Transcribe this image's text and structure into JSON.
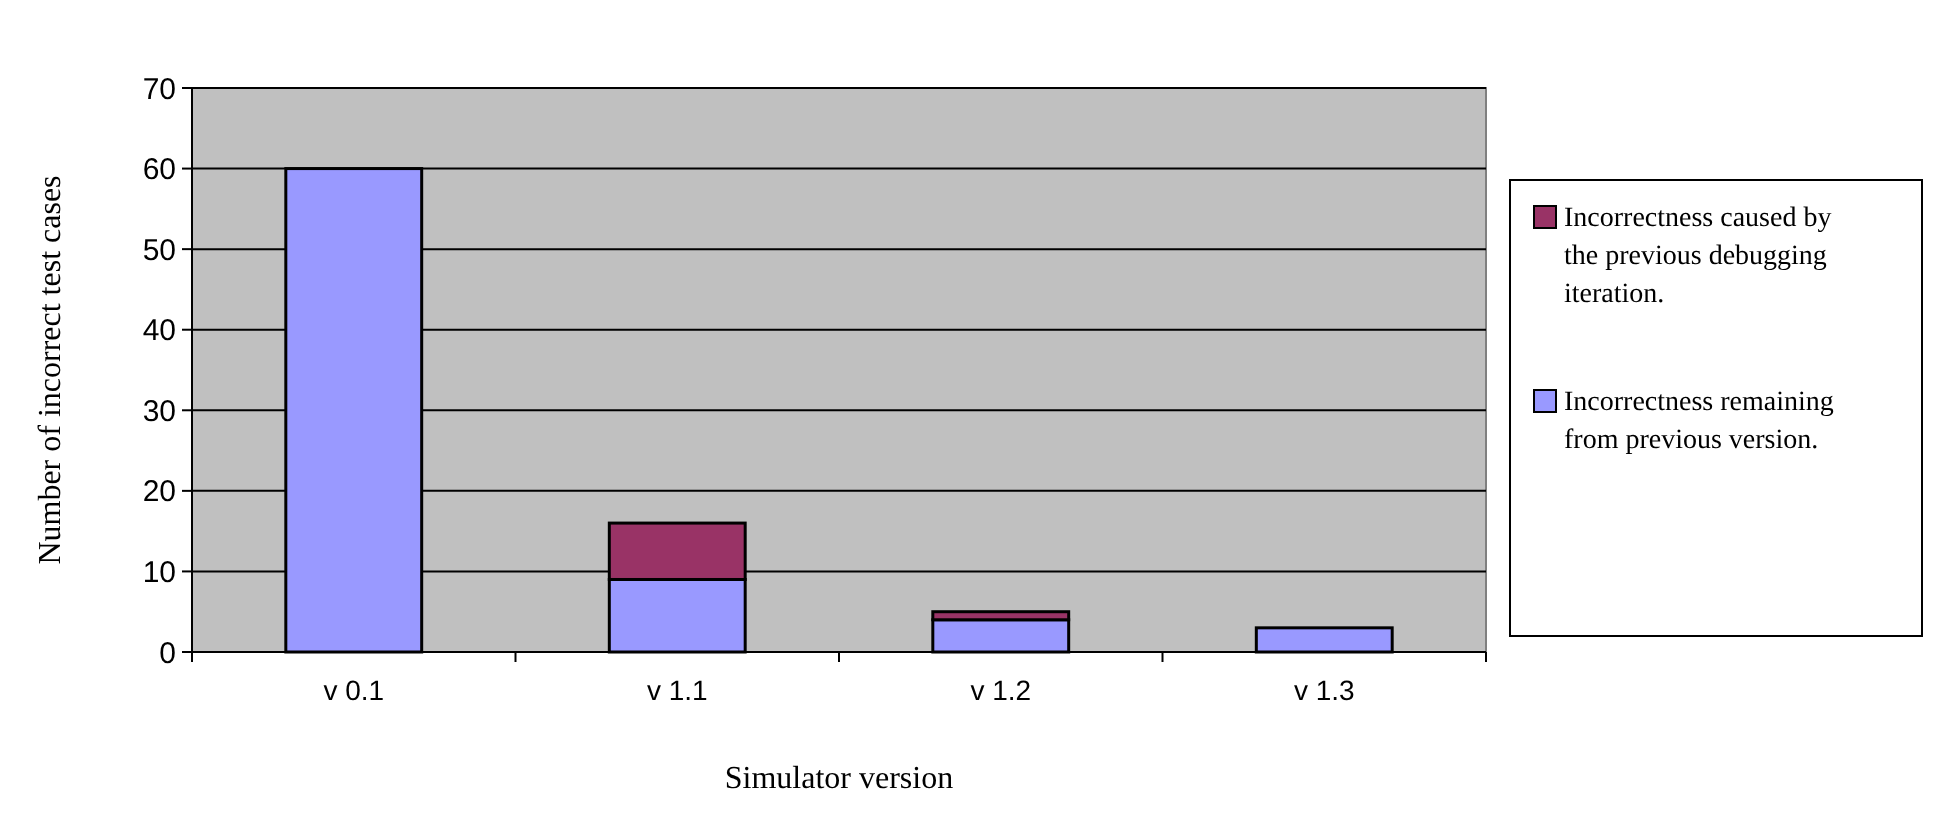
{
  "chart_data": {
    "type": "bar",
    "xlabel": "Simulator version",
    "ylabel": "Number of incorrect test cases",
    "categories": [
      "v 0.1",
      "v 1.1",
      "v 1.2",
      "v 1.3"
    ],
    "series": [
      {
        "name": "Incorrectness remaining from previous version.",
        "color": "#9999ff",
        "values": [
          60,
          9,
          4,
          3
        ]
      },
      {
        "name": "Incorrectness caused by the previous debugging iteration.",
        "color": "#993366",
        "values": [
          null,
          7,
          1,
          null
        ]
      }
    ],
    "stacked": true,
    "ylim": [
      0,
      70
    ],
    "yticks": [
      0,
      10,
      20,
      30,
      40,
      50,
      60,
      70
    ],
    "grid": "y",
    "legend": "right"
  }
}
